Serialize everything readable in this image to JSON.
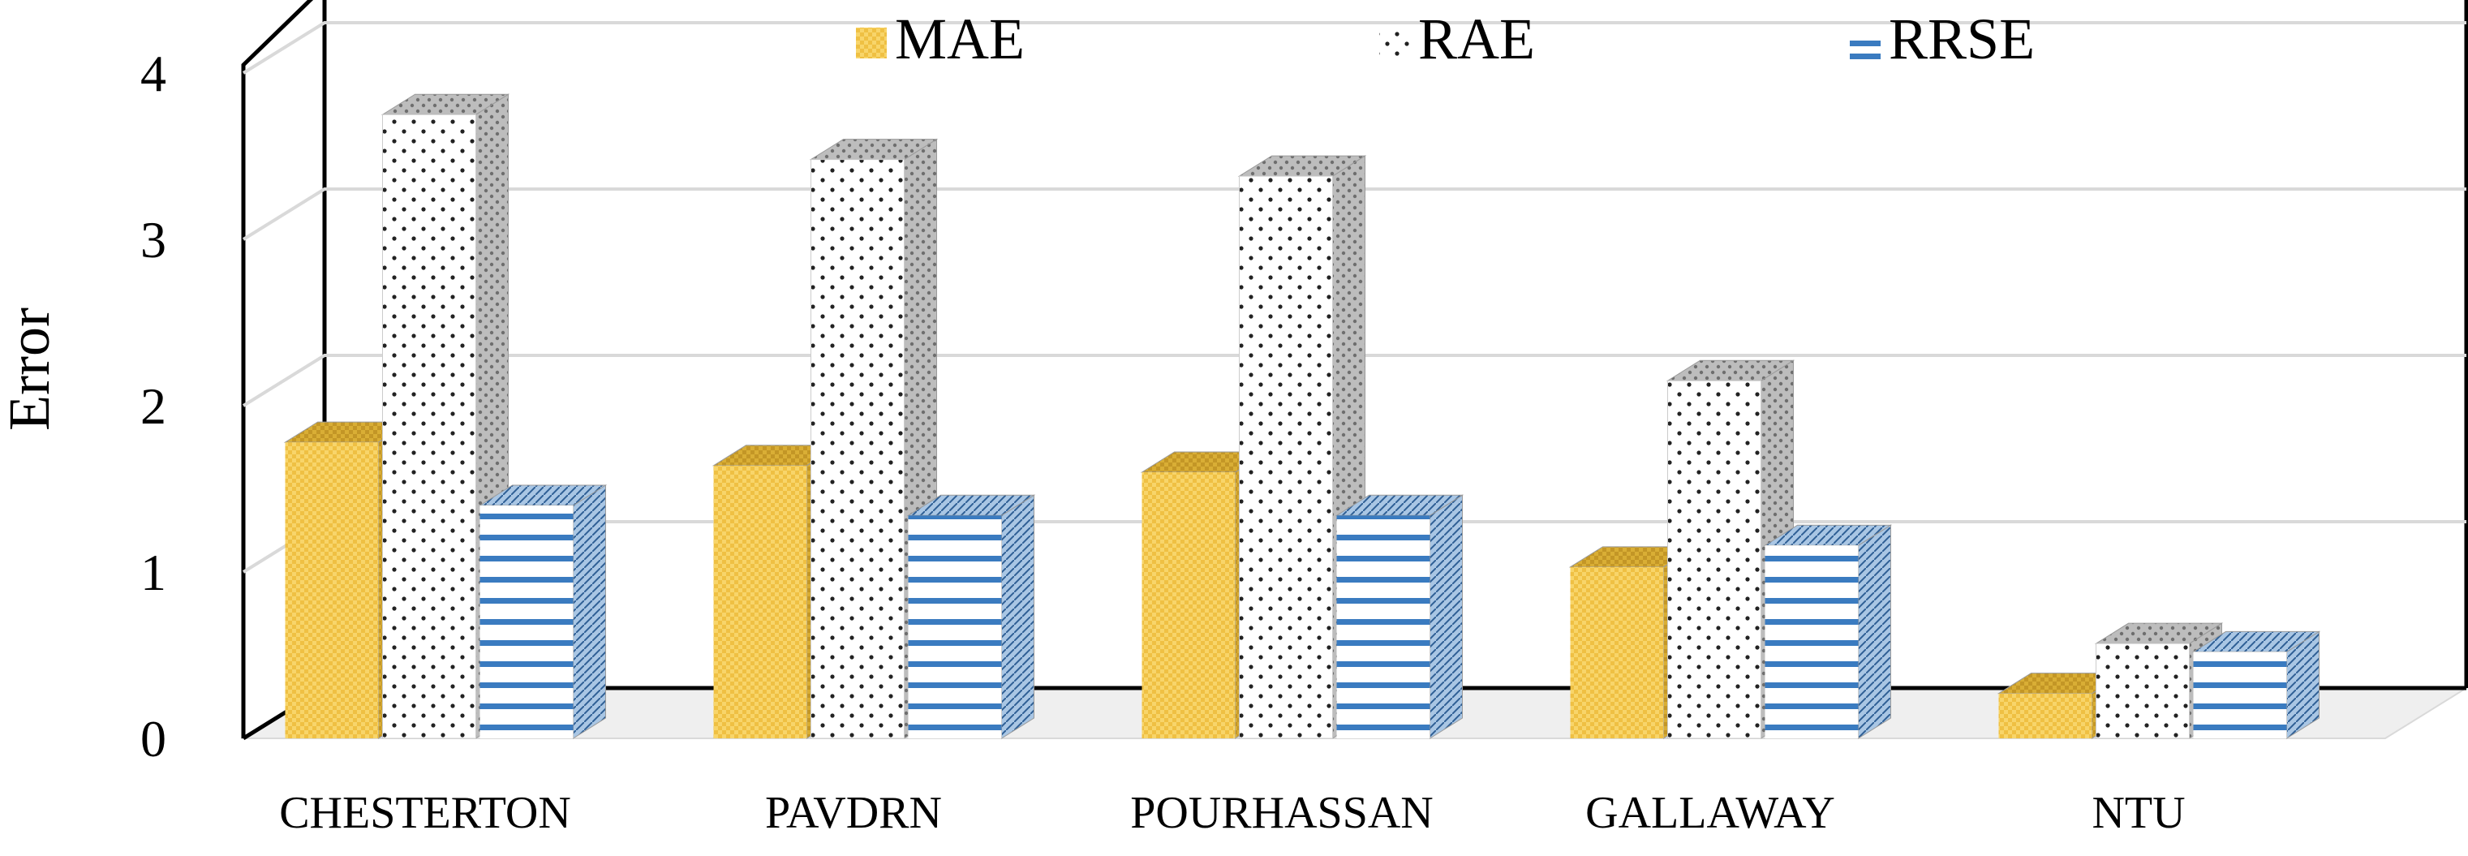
{
  "chart_data": {
    "type": "bar",
    "categories": [
      "CHESTERTON",
      "PAVDRN",
      "POURHASSAN",
      "GALLAWAY",
      "NTU"
    ],
    "series": [
      {
        "name": "MAE",
        "values": [
          1.78,
          1.64,
          1.6,
          1.03,
          0.27
        ],
        "color": "#F5CD55",
        "pattern": "checker"
      },
      {
        "name": "RAE",
        "values": [
          3.75,
          3.48,
          3.38,
          2.15,
          0.57
        ],
        "color": "#FFFFFF",
        "pattern": "dots"
      },
      {
        "name": "RRSE",
        "values": [
          1.4,
          1.34,
          1.34,
          1.16,
          0.52
        ],
        "color": "#3A7BC0",
        "pattern": "hlines"
      }
    ],
    "ylabel": "Error",
    "ylim": [
      0,
      4
    ],
    "yticks": [
      "0",
      "1",
      "2",
      "3",
      "4"
    ],
    "grid": true,
    "legend_position": "top",
    "style": "3d-column"
  }
}
